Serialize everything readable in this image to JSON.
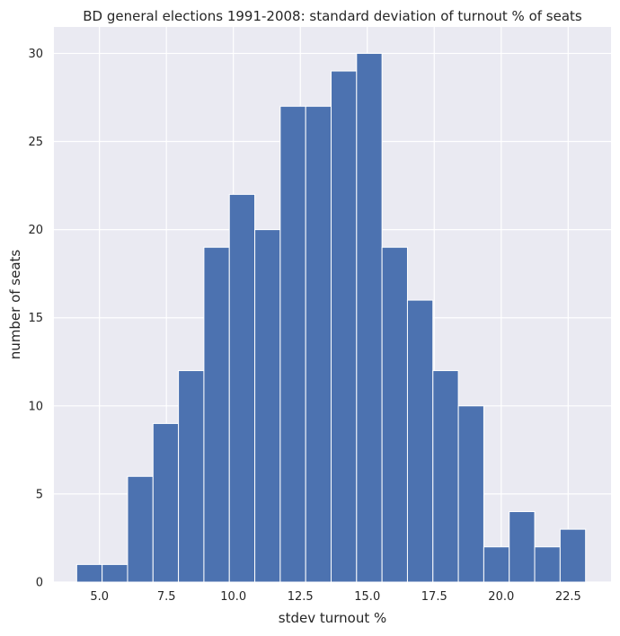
{
  "chart_data": {
    "type": "bar",
    "title": "BD general elections 1991-2008: standard deviation of turnout % of seats",
    "xlabel": "stdev turnout %",
    "ylabel": "number of seats",
    "xlim": [
      3.3,
      24.1
    ],
    "ylim": [
      0,
      31.5
    ],
    "grid": true,
    "background": "#eaeaf2",
    "bar_color": "#4c72b0",
    "bin_start": 4.15,
    "bin_width": 0.95,
    "values": [
      1,
      1,
      6,
      9,
      12,
      19,
      22,
      20,
      27,
      27,
      29,
      30,
      19,
      16,
      12,
      10,
      2,
      4,
      2,
      3
    ],
    "xticks": [
      {
        "value": 5.0,
        "label": "5.0"
      },
      {
        "value": 7.5,
        "label": "7.5"
      },
      {
        "value": 10.0,
        "label": "10.0"
      },
      {
        "value": 12.5,
        "label": "12.5"
      },
      {
        "value": 15.0,
        "label": "15.0"
      },
      {
        "value": 17.5,
        "label": "17.5"
      },
      {
        "value": 20.0,
        "label": "20.0"
      },
      {
        "value": 22.5,
        "label": "22.5"
      }
    ],
    "yticks": [
      {
        "value": 0,
        "label": "0"
      },
      {
        "value": 5,
        "label": "5"
      },
      {
        "value": 10,
        "label": "10"
      },
      {
        "value": 15,
        "label": "15"
      },
      {
        "value": 20,
        "label": "20"
      },
      {
        "value": 25,
        "label": "25"
      },
      {
        "value": 30,
        "label": "30"
      }
    ]
  }
}
